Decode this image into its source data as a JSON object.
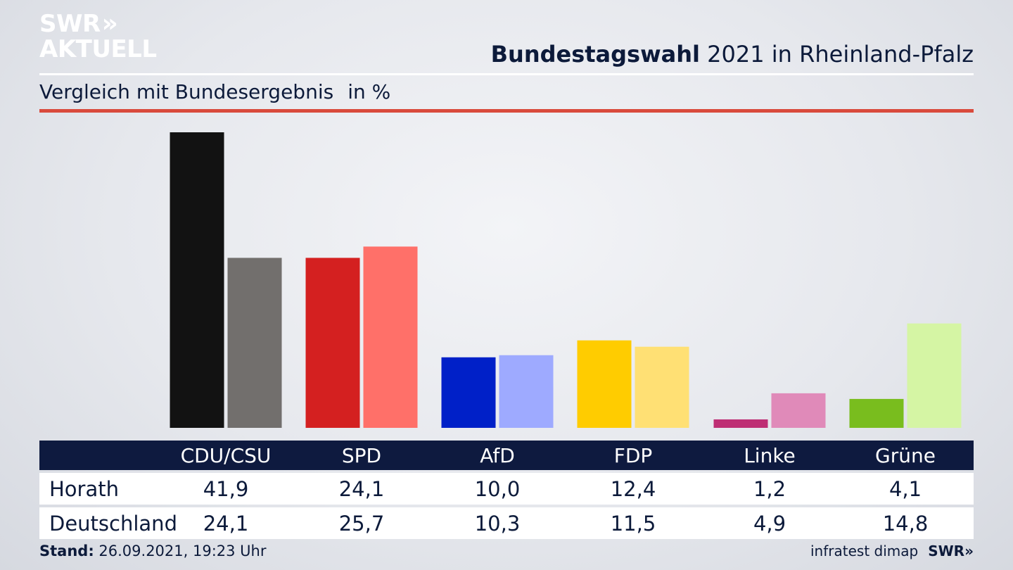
{
  "brand": {
    "logo_line1": "SWR",
    "logo_chevrons": "»",
    "logo_line2": "AKTUELL"
  },
  "header": {
    "title_bold": "Bundestagswahl",
    "title_rest": " 2021 in Rheinland-Pfalz",
    "subtitle": "Vergleich mit Bundesergebnis",
    "unit": "in %"
  },
  "chart_data": {
    "type": "bar",
    "title": "Bundestagswahl 2021 in Rheinland-Pfalz",
    "subtitle": "Vergleich mit Bundesergebnis",
    "unit": "in %",
    "categories": [
      "CDU/CSU",
      "SPD",
      "AfD",
      "FDP",
      "Linke",
      "Grüne"
    ],
    "series": [
      {
        "name": "Horath",
        "values": [
          41.9,
          24.1,
          10.0,
          12.4,
          1.2,
          4.1
        ]
      },
      {
        "name": "Deutschland",
        "values": [
          24.1,
          25.7,
          10.3,
          11.5,
          4.9,
          14.8
        ]
      }
    ],
    "colors": {
      "primary": [
        "#121212",
        "#d42020",
        "#0020c8",
        "#ffcc00",
        "#be2e74",
        "#79bd1e"
      ],
      "secondary": [
        "#726f6d",
        "#ff7069",
        "#9eaaff",
        "#ffe074",
        "#e08ab9",
        "#d5f5a4"
      ]
    },
    "ylim": [
      0,
      41.9
    ],
    "grid": false,
    "legend": "table-below"
  },
  "table": {
    "headers": [
      "CDU/CSU",
      "SPD",
      "AfD",
      "FDP",
      "Linke",
      "Grüne"
    ],
    "rows": [
      {
        "label": "Horath",
        "values": [
          "41,9",
          "24,1",
          "10,0",
          "12,4",
          "1,2",
          "4,1"
        ]
      },
      {
        "label": "Deutschland",
        "values": [
          "24,1",
          "25,7",
          "10,3",
          "11,5",
          "4,9",
          "14,8"
        ]
      }
    ]
  },
  "footer": {
    "stand_label": "Stand:",
    "stand_value": " 26.09.2021, 19:23 Uhr",
    "source": "infratest dimap",
    "swr": "SWR»"
  }
}
